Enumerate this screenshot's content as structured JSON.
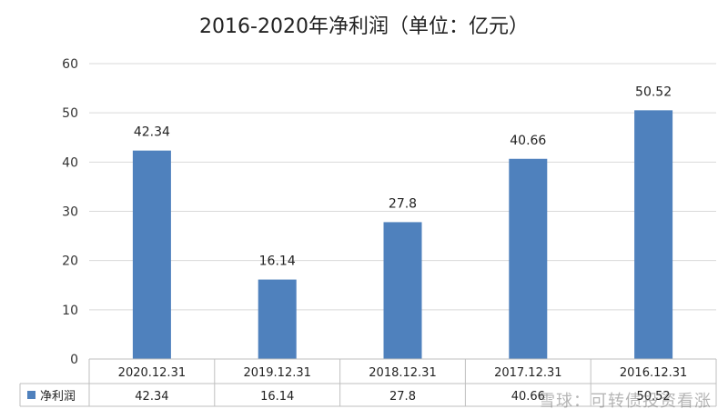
{
  "chart_data": {
    "type": "bar",
    "title": "2016-2020年净利润（单位：亿元）",
    "categories": [
      "2020.12.31",
      "2019.12.31",
      "2018.12.31",
      "2017.12.31",
      "2016.12.31"
    ],
    "series": [
      {
        "name": "净利润",
        "values": [
          42.34,
          16.14,
          27.8,
          40.66,
          50.52
        ],
        "color": "#4f81bd"
      }
    ],
    "value_labels": [
      "42.34",
      "16.14",
      "27.8",
      "40.66",
      "50.52"
    ],
    "ylim": [
      0,
      60
    ],
    "yticks": [
      0,
      10,
      20,
      30,
      40,
      50,
      60
    ],
    "grid": true,
    "legend": "bottom-left",
    "data_table": true
  },
  "watermark": "雪球：可转债投资看涨"
}
